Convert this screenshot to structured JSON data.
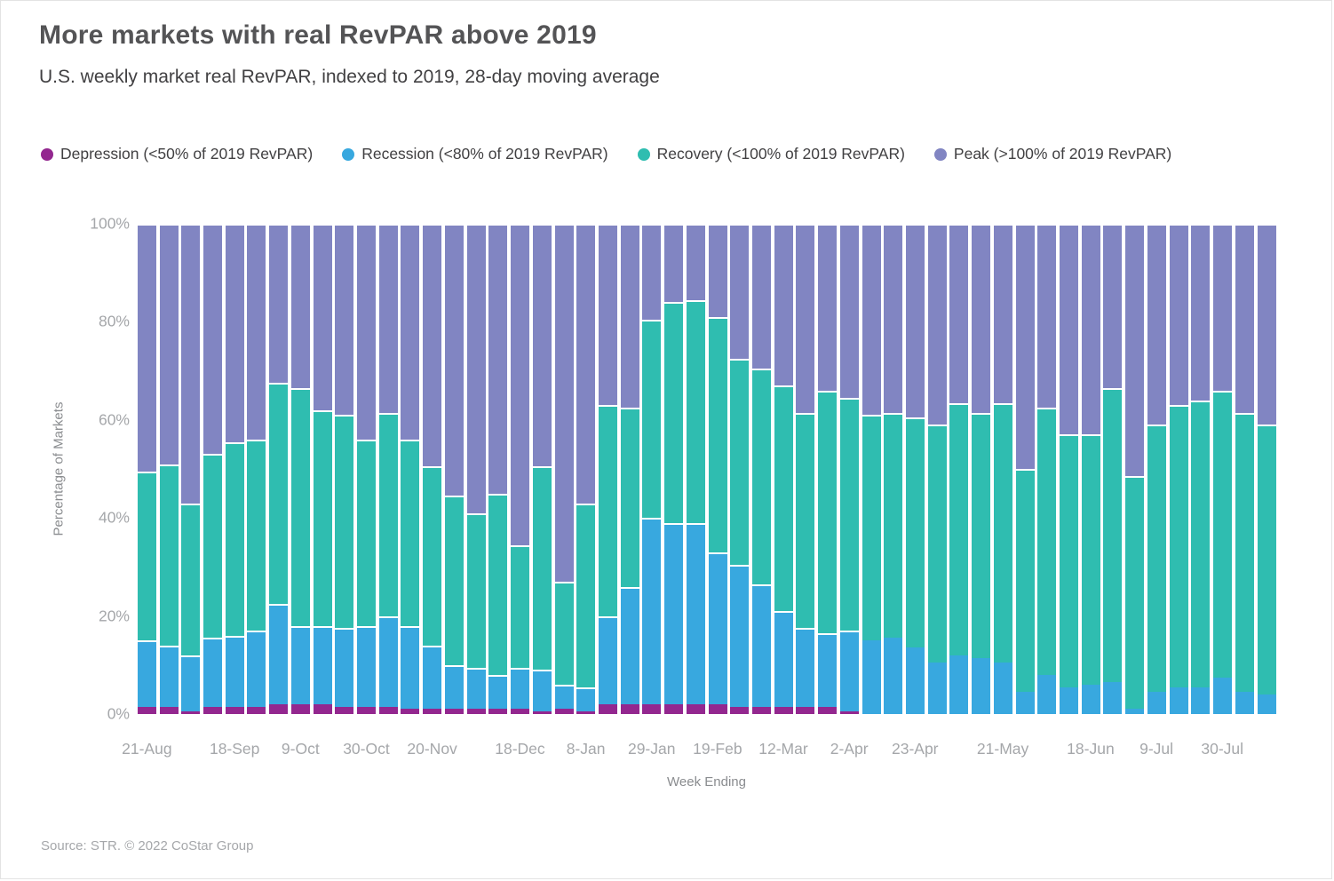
{
  "title": "More markets with real RevPAR above 2019",
  "subtitle": "U.S. weekly market real RevPAR, indexed to 2019, 28-day moving average",
  "source": "Source: STR. © 2022 CoStar Group",
  "colors": {
    "depression": "#93278f",
    "recession": "#38a8df",
    "recovery": "#2fbdb0",
    "peak": "#8185c2",
    "title_text": "#545456",
    "subtitle_text": "#414042",
    "axis_text": "#a5a7aa",
    "axis_title_text": "#8a8c8f"
  },
  "legend": [
    {
      "label": "Depression (<50% of 2019 RevPAR)",
      "color": "#93278f"
    },
    {
      "label": "Recession (<80% of 2019 RevPAR)",
      "color": "#38a8df"
    },
    {
      "label": "Recovery (<100% of 2019 RevPAR)",
      "color": "#2fbdb0"
    },
    {
      "label": "Peak (>100% of 2019 RevPAR)",
      "color": "#8185c2"
    }
  ],
  "chart_data": {
    "type": "bar",
    "subtype": "stacked-100pct-weekly",
    "title": "More markets with real RevPAR above 2019",
    "xlabel": "Week Ending",
    "ylabel": "Percentage of Markets",
    "ylim": [
      0,
      100
    ],
    "y_ticks": [
      0,
      20,
      40,
      60,
      80,
      100
    ],
    "y_tick_labels": [
      "0%",
      "20%",
      "40%",
      "60%",
      "80%",
      "100%"
    ],
    "grid": false,
    "legend_position": "top",
    "categories": [
      "21-Aug",
      "28-Aug",
      "4-Sep",
      "11-Sep",
      "18-Sep",
      "25-Sep",
      "2-Oct",
      "9-Oct",
      "16-Oct",
      "23-Oct",
      "30-Oct",
      "6-Nov",
      "13-Nov",
      "20-Nov",
      "27-Nov",
      "4-Dec",
      "11-Dec",
      "18-Dec",
      "25-Dec",
      "1-Jan",
      "8-Jan",
      "15-Jan",
      "22-Jan",
      "29-Jan",
      "5-Feb",
      "12-Feb",
      "19-Feb",
      "26-Feb",
      "5-Mar",
      "12-Mar",
      "19-Mar",
      "26-Mar",
      "2-Apr",
      "9-Apr",
      "16-Apr",
      "23-Apr",
      "30-Apr",
      "7-May",
      "14-May",
      "21-May",
      "28-May",
      "4-Jun",
      "11-Jun",
      "18-Jun",
      "25-Jun",
      "2-Jul",
      "9-Jul",
      "16-Jul",
      "23-Jul",
      "30-Jul",
      "6-Aug",
      "13-Aug"
    ],
    "x_tick_labels_shown": [
      {
        "index": 0,
        "label": "21-Aug"
      },
      {
        "index": 4,
        "label": "18-Sep"
      },
      {
        "index": 7,
        "label": "9-Oct"
      },
      {
        "index": 10,
        "label": "30-Oct"
      },
      {
        "index": 13,
        "label": "20-Nov"
      },
      {
        "index": 17,
        "label": "18-Dec"
      },
      {
        "index": 20,
        "label": "8-Jan"
      },
      {
        "index": 23,
        "label": "29-Jan"
      },
      {
        "index": 26,
        "label": "19-Feb"
      },
      {
        "index": 29,
        "label": "12-Mar"
      },
      {
        "index": 32,
        "label": "2-Apr"
      },
      {
        "index": 35,
        "label": "23-Apr"
      },
      {
        "index": 39,
        "label": "21-May"
      },
      {
        "index": 43,
        "label": "18-Jun"
      },
      {
        "index": 46,
        "label": "9-Jul"
      },
      {
        "index": 49,
        "label": "30-Jul"
      }
    ],
    "series": [
      {
        "name": "Depression (<50% of 2019 RevPAR)",
        "color": "#93278f",
        "values": [
          1.5,
          1.5,
          0.5,
          1.5,
          1.5,
          1.5,
          2,
          2,
          2,
          1.5,
          1.5,
          1.5,
          1,
          1,
          1,
          1,
          1,
          1,
          0.5,
          1,
          0.5,
          2,
          2,
          2,
          2,
          2,
          2,
          1.5,
          1.5,
          1.5,
          1.5,
          1.5,
          0.5,
          0,
          0,
          0,
          0,
          0,
          0,
          0,
          0,
          0,
          0,
          0,
          0,
          0,
          0,
          0,
          0,
          0,
          0,
          0
        ]
      },
      {
        "name": "Recession (<80% of 2019 RevPAR)",
        "color": "#38a8df",
        "values": [
          13.5,
          12.5,
          11.5,
          14,
          14.5,
          15.5,
          20.5,
          16,
          16,
          16,
          16.5,
          18.5,
          17,
          13,
          9,
          8.5,
          7,
          8.5,
          8.5,
          5,
          5,
          18,
          24,
          38,
          37,
          37,
          31,
          29,
          25,
          19.5,
          16,
          15,
          16.5,
          15,
          15.5,
          13.5,
          10.5,
          12,
          11.5,
          10.5,
          4.5,
          8,
          5.5,
          6,
          6.5,
          1,
          4.5,
          5.5,
          5.5,
          7.5,
          4.5,
          4
        ]
      },
      {
        "name": "Recovery (<100% of 2019 RevPAR)",
        "color": "#2fbdb0",
        "values": [
          34.5,
          37,
          31,
          37.5,
          39.5,
          39,
          45,
          48.5,
          44,
          43.5,
          38,
          41.5,
          38,
          36.5,
          34.5,
          31.5,
          37,
          25,
          41.5,
          21,
          37.5,
          43,
          36.5,
          40.5,
          45,
          45.5,
          48,
          42,
          44,
          46,
          44,
          49.5,
          47.5,
          46,
          46,
          47,
          48.5,
          51.5,
          50,
          53,
          45.5,
          54.5,
          51.5,
          51,
          60,
          47.5,
          54.5,
          57.5,
          58.5,
          58.5,
          57,
          55
        ]
      },
      {
        "name": "Peak (>100% of 2019 RevPAR)",
        "color": "#8185c2",
        "values": [
          50.5,
          49,
          57,
          47,
          44.5,
          44,
          32.5,
          33.5,
          38,
          39,
          44,
          38.5,
          44,
          49.5,
          55.5,
          59,
          55,
          65.5,
          49.5,
          73,
          57,
          37,
          37.5,
          19.5,
          16,
          15.5,
          19,
          27.5,
          29.5,
          33,
          38.5,
          34,
          35.5,
          39,
          38.5,
          39.5,
          41,
          36.5,
          38.5,
          36.5,
          50,
          37.5,
          43,
          43,
          33.5,
          51.5,
          41,
          37,
          36,
          34,
          38.5,
          41
        ]
      }
    ]
  }
}
